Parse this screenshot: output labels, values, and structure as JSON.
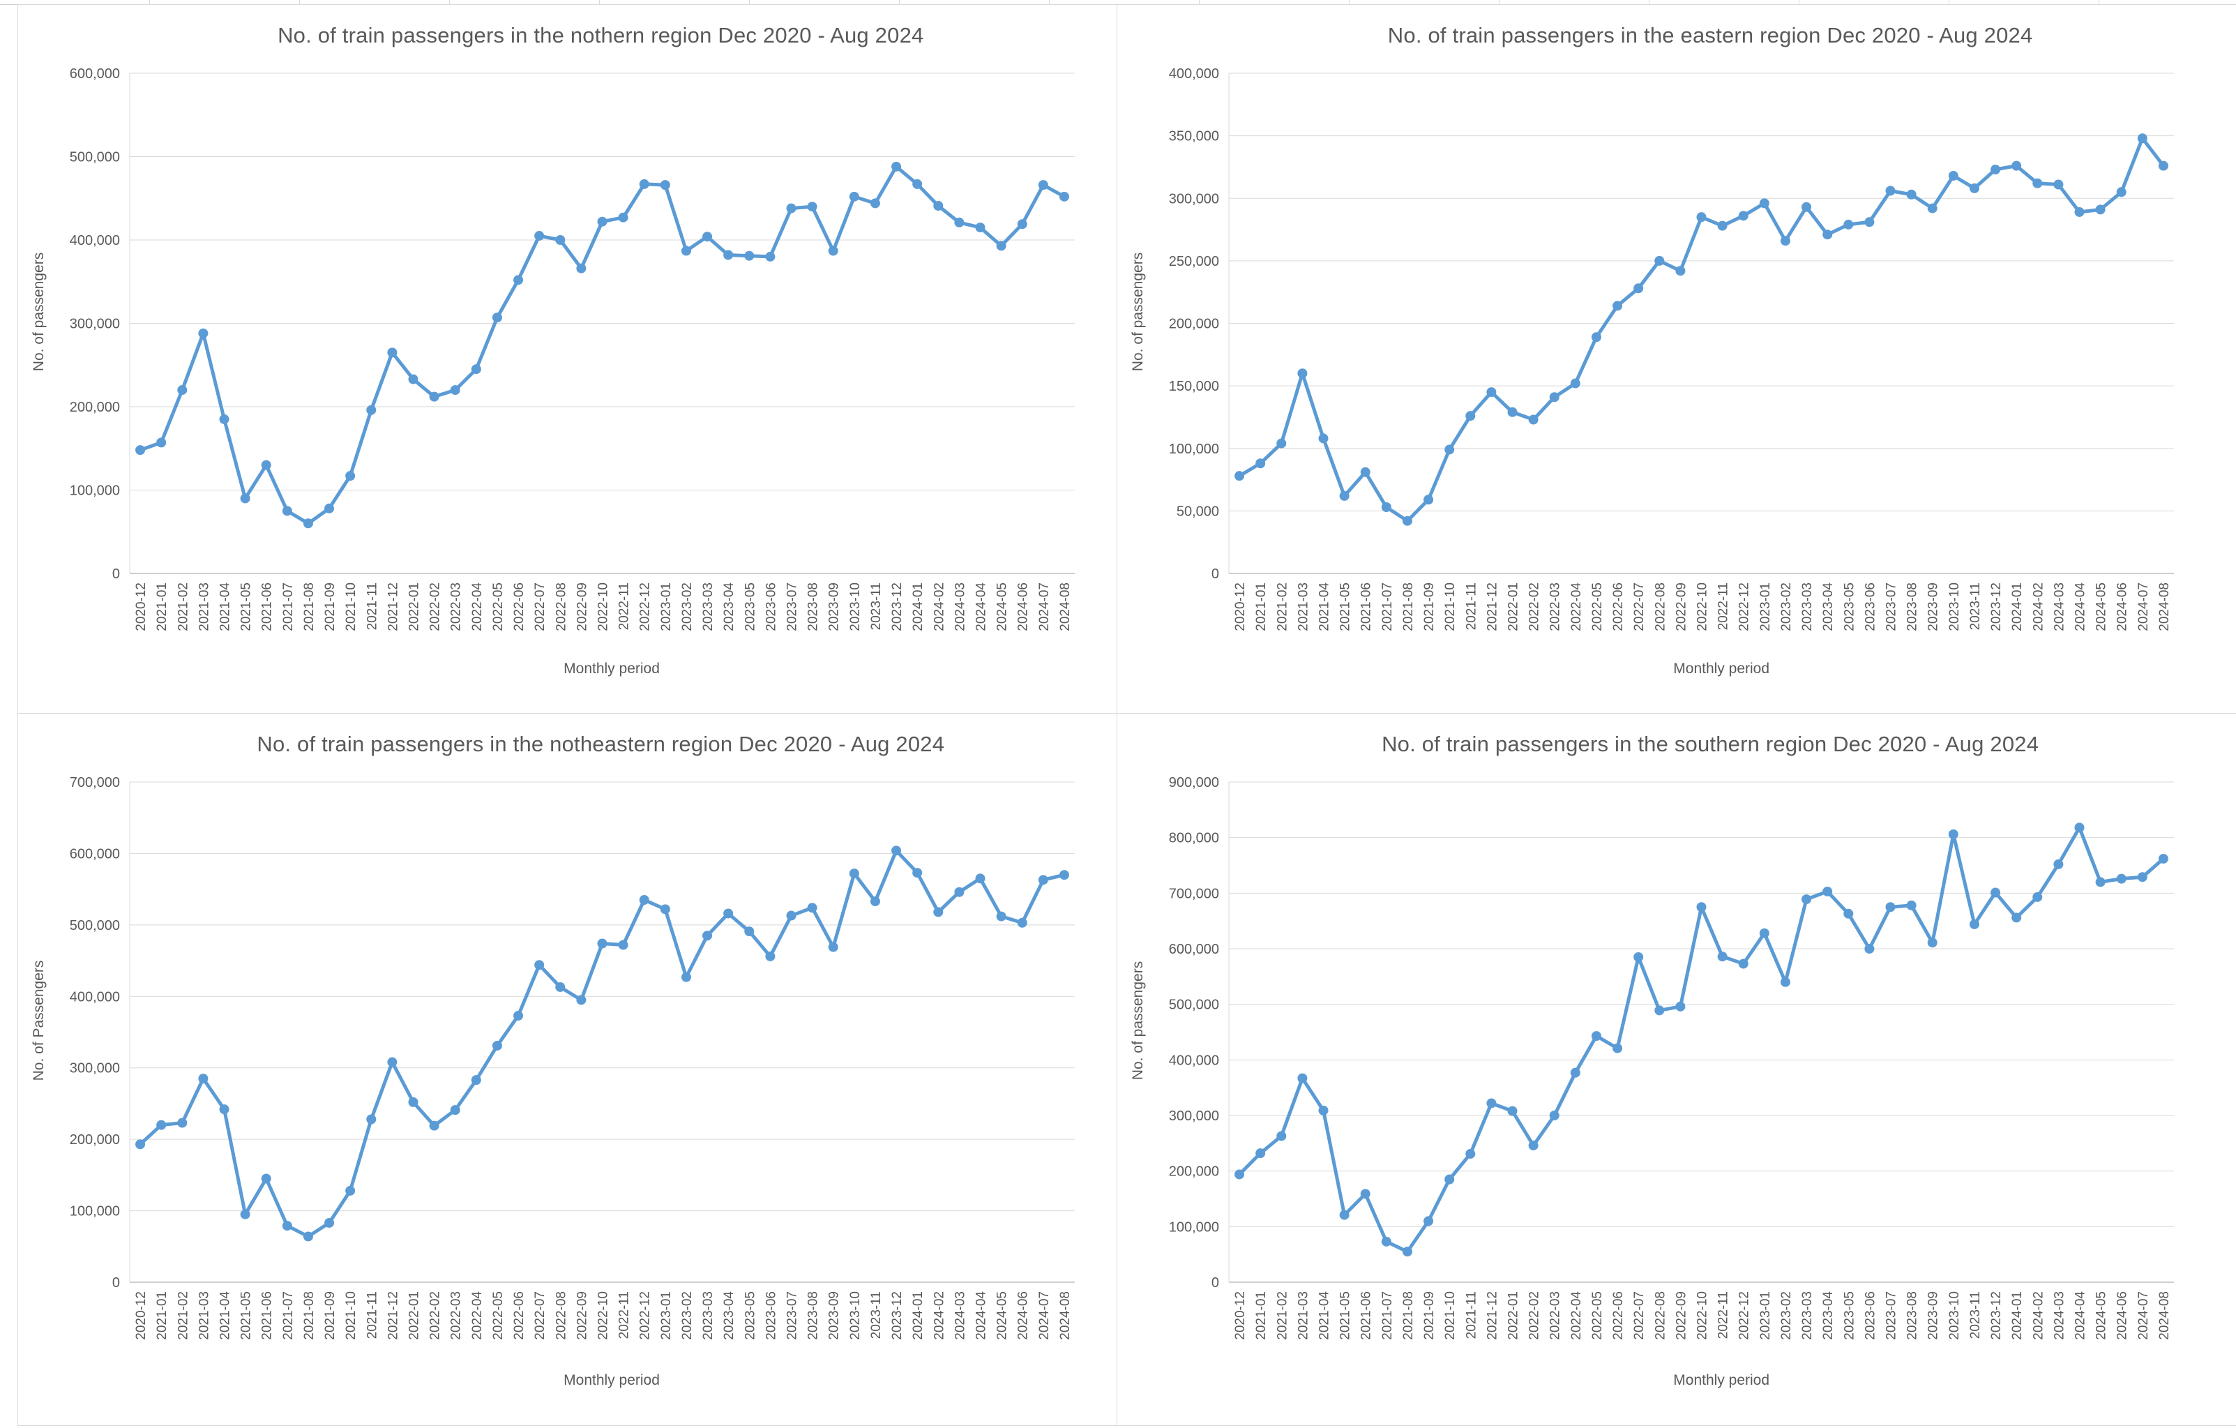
{
  "chart_data": [
    {
      "type": "line",
      "title": "No. of train passengers in the nothern region Dec 2020 - Aug 2024",
      "xlabel": "Monthly period",
      "ylabel": "No. of passengers",
      "ylim": [
        0,
        600000
      ],
      "ytick_step": 100000,
      "grid": true,
      "legend": false,
      "line_color": "#5B9BD5",
      "categories": [
        "2020-12",
        "2021-01",
        "2021-02",
        "2021-03",
        "2021-04",
        "2021-05",
        "2021-06",
        "2021-07",
        "2021-08",
        "2021-09",
        "2021-10",
        "2021-11",
        "2021-12",
        "2022-01",
        "2022-02",
        "2022-03",
        "2022-04",
        "2022-05",
        "2022-06",
        "2022-07",
        "2022-08",
        "2022-09",
        "2022-10",
        "2022-11",
        "2022-12",
        "2023-01",
        "2023-02",
        "2023-03",
        "2023-04",
        "2023-05",
        "2023-06",
        "2023-07",
        "2023-08",
        "2023-09",
        "2023-10",
        "2023-11",
        "2023-12",
        "2024-01",
        "2024-02",
        "2024-03",
        "2024-04",
        "2024-05",
        "2024-06",
        "2024-07",
        "2024-08"
      ],
      "values": [
        148000,
        157000,
        220000,
        288000,
        185000,
        90000,
        130000,
        75000,
        60000,
        78000,
        117000,
        196000,
        265000,
        233000,
        212000,
        220000,
        245000,
        307000,
        352000,
        405000,
        400000,
        366000,
        422000,
        427000,
        467000,
        466000,
        387000,
        404000,
        382000,
        381000,
        380000,
        438000,
        440000,
        387000,
        452000,
        444000,
        488000,
        467000,
        441000,
        421000,
        415000,
        393000,
        419000,
        466000,
        452000
      ]
    },
    {
      "type": "line",
      "title": "No. of train passengers in the eastern region Dec 2020 - Aug 2024",
      "xlabel": "Monthly period",
      "ylabel": "No. of passengers",
      "ylim": [
        0,
        400000
      ],
      "ytick_step": 50000,
      "grid": true,
      "legend": false,
      "line_color": "#5B9BD5",
      "categories": [
        "2020-12",
        "2021-01",
        "2021-02",
        "2021-03",
        "2021-04",
        "2021-05",
        "2021-06",
        "2021-07",
        "2021-08",
        "2021-09",
        "2021-10",
        "2021-11",
        "2021-12",
        "2022-01",
        "2022-02",
        "2022-03",
        "2022-04",
        "2022-05",
        "2022-06",
        "2022-07",
        "2022-08",
        "2022-09",
        "2022-10",
        "2022-11",
        "2022-12",
        "2023-01",
        "2023-02",
        "2023-03",
        "2023-04",
        "2023-05",
        "2023-06",
        "2023-07",
        "2023-08",
        "2023-09",
        "2023-10",
        "2023-11",
        "2023-12",
        "2024-01",
        "2024-02",
        "2024-03",
        "2024-04",
        "2024-05",
        "2024-06",
        "2024-07",
        "2024-08"
      ],
      "values": [
        78000,
        88000,
        104000,
        160000,
        108000,
        62000,
        81000,
        53000,
        42000,
        59000,
        99000,
        126000,
        145000,
        129000,
        123000,
        141000,
        152000,
        189000,
        214000,
        228000,
        250000,
        242000,
        285000,
        278000,
        286000,
        296000,
        266000,
        293000,
        271000,
        279000,
        281000,
        306000,
        303000,
        292000,
        318000,
        308000,
        323000,
        326000,
        312000,
        311000,
        289000,
        291000,
        305000,
        348000,
        326000
      ]
    },
    {
      "type": "line",
      "title": "No. of train passengers in the notheastern region Dec 2020 - Aug 2024",
      "xlabel": "Monthly period",
      "ylabel": "No. of Passengers",
      "ylim": [
        0,
        700000
      ],
      "ytick_step": 100000,
      "grid": true,
      "legend": false,
      "line_color": "#5B9BD5",
      "categories": [
        "2020-12",
        "2021-01",
        "2021-02",
        "2021-03",
        "2021-04",
        "2021-05",
        "2021-06",
        "2021-07",
        "2021-08",
        "2021-09",
        "2021-10",
        "2021-11",
        "2021-12",
        "2022-01",
        "2022-02",
        "2022-03",
        "2022-04",
        "2022-05",
        "2022-06",
        "2022-07",
        "2022-08",
        "2022-09",
        "2022-10",
        "2022-11",
        "2022-12",
        "2023-01",
        "2023-02",
        "2023-03",
        "2023-04",
        "2023-05",
        "2023-06",
        "2023-07",
        "2023-08",
        "2023-09",
        "2023-10",
        "2023-11",
        "2023-12",
        "2024-01",
        "2024-02",
        "2024-03",
        "2024-04",
        "2024-05",
        "2024-06",
        "2024-07",
        "2024-08"
      ],
      "values": [
        193000,
        220000,
        223000,
        285000,
        242000,
        95000,
        145000,
        79000,
        64000,
        83000,
        128000,
        228000,
        308000,
        252000,
        219000,
        241000,
        283000,
        331000,
        373000,
        444000,
        413000,
        395000,
        474000,
        472000,
        535000,
        522000,
        427000,
        485000,
        516000,
        491000,
        456000,
        513000,
        524000,
        469000,
        572000,
        533000,
        604000,
        573000,
        518000,
        546000,
        565000,
        512000,
        503000,
        563000,
        570000
      ]
    },
    {
      "type": "line",
      "title": "No. of train passengers in the southern region Dec 2020 - Aug 2024",
      "xlabel": "Monthly period",
      "ylabel": "No. of passengers",
      "ylim": [
        0,
        900000
      ],
      "ytick_step": 100000,
      "grid": true,
      "legend": false,
      "line_color": "#5B9BD5",
      "categories": [
        "2020-12",
        "2021-01",
        "2021-02",
        "2021-03",
        "2021-04",
        "2021-05",
        "2021-06",
        "2021-07",
        "2021-08",
        "2021-09",
        "2021-10",
        "2021-11",
        "2021-12",
        "2022-01",
        "2022-02",
        "2022-03",
        "2022-04",
        "2022-05",
        "2022-06",
        "2022-07",
        "2022-08",
        "2022-09",
        "2022-10",
        "2022-11",
        "2022-12",
        "2023-01",
        "2023-02",
        "2023-03",
        "2023-04",
        "2023-05",
        "2023-06",
        "2023-07",
        "2023-08",
        "2023-09",
        "2023-10",
        "2023-11",
        "2023-12",
        "2024-01",
        "2024-02",
        "2024-03",
        "2024-04",
        "2024-05",
        "2024-06",
        "2024-07",
        "2024-08"
      ],
      "values": [
        194000,
        232000,
        263000,
        367000,
        309000,
        121000,
        159000,
        73000,
        55000,
        110000,
        185000,
        231000,
        322000,
        308000,
        246000,
        300000,
        377000,
        443000,
        421000,
        585000,
        489000,
        496000,
        675000,
        586000,
        573000,
        628000,
        540000,
        689000,
        703000,
        663000,
        600000,
        675000,
        678000,
        611000,
        806000,
        644000,
        701000,
        656000,
        693000,
        752000,
        818000,
        720000,
        726000,
        729000,
        762000
      ]
    }
  ],
  "style": {
    "gridline_color": "#D9D9D9",
    "axis_line_color": "#BFBFBF",
    "text_color": "#595959"
  }
}
